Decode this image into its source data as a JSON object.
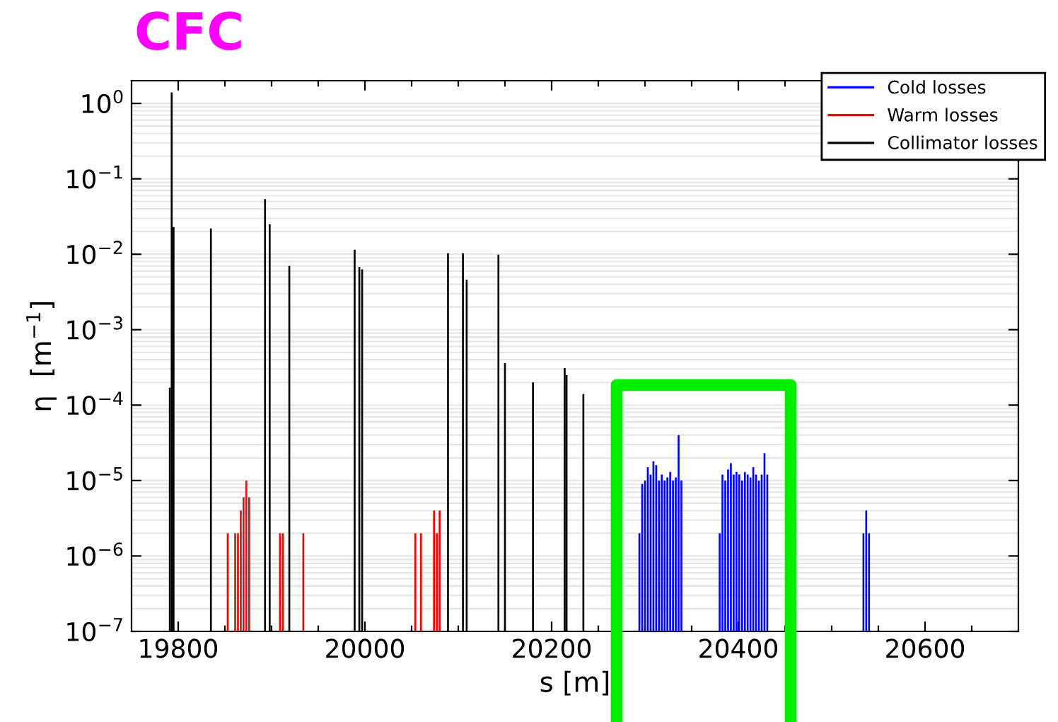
{
  "chart_data": {
    "type": "bar",
    "title": "CFC",
    "xlabel": "s [m]",
    "ylabel": "η  [m$^{−1}$]",
    "xlim": [
      19750,
      20700
    ],
    "xticks": [
      19800,
      {
        "value": 19850,
        "label": null
      },
      {
        "value": 19900,
        "label": null
      },
      {
        "value": 19950,
        "label": null
      },
      20000,
      {
        "value": 20050,
        "label": null
      },
      {
        "value": 20100,
        "label": null
      },
      {
        "value": 20150,
        "label": null
      },
      20200,
      {
        "value": 20250,
        "label": null
      },
      {
        "value": 20300,
        "label": null
      },
      {
        "value": 20350,
        "label": null
      },
      20400,
      {
        "value": 20450,
        "label": null
      },
      {
        "value": 20500,
        "label": null
      },
      {
        "value": 20550,
        "label": null
      },
      20600,
      {
        "value": 20650,
        "label": null
      }
    ],
    "log": true,
    "ylim": [
      1e-07,
      2
    ],
    "yticks": [
      {
        "value": 1e-07,
        "label": "10$^{−7}$"
      },
      {
        "value": 1e-06,
        "label": "10$^{−6}$"
      },
      {
        "value": 1e-05,
        "label": "10$^{−5}$"
      },
      {
        "value": 0.0001,
        "label": "10$^{−4}$"
      },
      {
        "value": 0.001,
        "label": "10$^{−3}$"
      },
      {
        "value": 0.01,
        "label": "10$^{−2}$"
      },
      {
        "value": 0.1,
        "label": "10$^{−1}$"
      },
      {
        "value": 1,
        "label": "10$^{0}$"
      }
    ],
    "grid": "y",
    "legend": "top right",
    "series": [
      {
        "name": "Cold losses",
        "color": "#0000ff",
        "x": [
          20294,
          20297,
          20300,
          20303,
          20306,
          20309,
          20312,
          20315,
          20318,
          20321,
          20324,
          20327,
          20330,
          20333,
          20336,
          20339,
          20380,
          20383,
          20386,
          20389,
          20392,
          20395,
          20398,
          20401,
          20404,
          20407,
          20410,
          20413,
          20416,
          20419,
          20422,
          20425,
          20428,
          20431,
          20534,
          20537,
          20540
        ],
        "values": [
          2e-06,
          9e-06,
          1e-05,
          1.5e-05,
          1.2e-05,
          1.8e-05,
          1.6e-05,
          1e-05,
          1.2e-05,
          1e-05,
          1.1e-05,
          1.3e-05,
          1e-05,
          1.1e-05,
          4e-05,
          1e-05,
          2e-06,
          1.2e-05,
          1e-05,
          1.4e-05,
          1.7e-05,
          1.2e-05,
          1.3e-05,
          1.2e-05,
          1e-05,
          1.3e-05,
          1.2e-05,
          1.1e-05,
          1.5e-05,
          1.2e-05,
          1e-05,
          1.2e-05,
          2.3e-05,
          1.2e-05,
          2e-06,
          4e-06,
          2e-06
        ]
      },
      {
        "name": "Warm losses",
        "color": "#ff0000",
        "x": [
          19853,
          19861,
          19864,
          19867,
          19870,
          19873,
          19876,
          19909,
          19912,
          19934,
          20054,
          20060,
          20074,
          20077,
          20080
        ],
        "values": [
          2e-06,
          2e-06,
          2e-06,
          4e-06,
          6e-06,
          1e-05,
          6e-06,
          2e-06,
          2e-06,
          2e-06,
          2e-06,
          2e-06,
          4e-06,
          2e-06,
          4e-06
        ]
      },
      {
        "name": "Collimator losses",
        "color": "#000000",
        "x": [
          19791,
          19793,
          19795,
          19835,
          19893,
          19898,
          19919,
          19989,
          19994,
          19997,
          20089,
          20105,
          20109,
          20143,
          20150,
          20180,
          20214,
          20216,
          20234
        ],
        "values": [
          0.00017,
          1.4,
          0.023,
          0.022,
          0.054,
          0.025,
          0.007,
          0.0115,
          0.0068,
          0.0063,
          0.0103,
          0.0103,
          0.0046,
          0.0099,
          0.00036,
          0.0002,
          0.00031,
          0.00025,
          0.00014
        ]
      }
    ]
  }
}
